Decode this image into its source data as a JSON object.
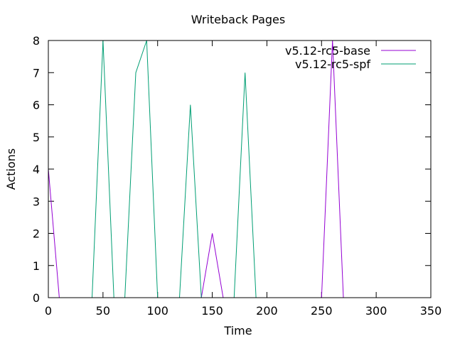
{
  "chart_data": {
    "type": "line",
    "title": "Writeback Pages",
    "xlabel": "Time",
    "ylabel": "Actions",
    "xlim": [
      0,
      350
    ],
    "ylim": [
      0,
      8
    ],
    "xticks": [
      0,
      50,
      100,
      150,
      200,
      250,
      300,
      350
    ],
    "yticks": [
      0,
      1,
      2,
      3,
      4,
      5,
      6,
      7,
      8
    ],
    "legend_position": "top-right",
    "grid": false,
    "series": [
      {
        "name": "v5.12-rc5-base",
        "color": "#9400d3",
        "x": [
          0,
          10,
          140,
          150,
          160,
          250,
          260,
          270
        ],
        "y": [
          4,
          0,
          0,
          2,
          0,
          0,
          8,
          0
        ]
      },
      {
        "name": "v5.12-rc5-spf",
        "color": "#009e73",
        "x": [
          40,
          50,
          60,
          70,
          80,
          90,
          100,
          120,
          130,
          140,
          170,
          180,
          190
        ],
        "y": [
          0,
          8,
          0,
          0,
          7,
          8,
          0,
          0,
          6,
          0,
          0,
          7,
          0
        ]
      }
    ]
  }
}
